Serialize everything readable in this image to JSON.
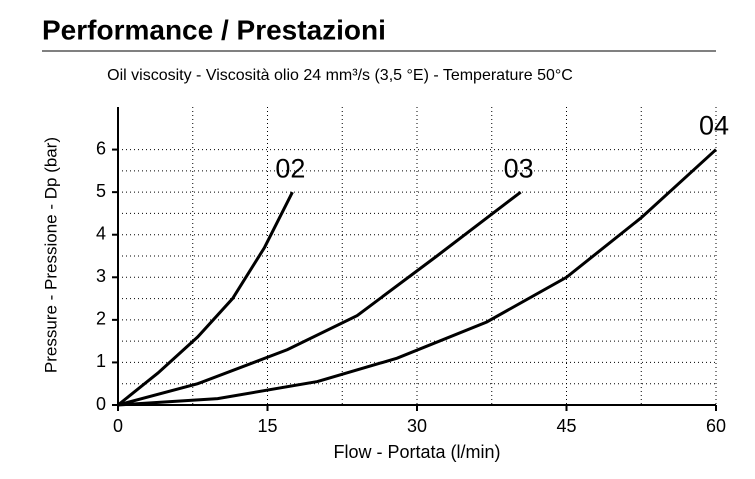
{
  "chart_data": {
    "type": "line",
    "title": "Performance / Prestazioni",
    "subtitle": "Oil viscosity - Viscosità olio 24 mm³/s (3,5 °E) - Temperature 50°C",
    "x_label": "Flow - Portata (l/min)",
    "y_label": "Pressure - Pressione - Dp (bar)",
    "xlim": [
      0,
      60
    ],
    "ylim": [
      0,
      7
    ],
    "xticks": [
      0,
      15,
      30,
      45,
      60
    ],
    "yticks": [
      0,
      1,
      2,
      3,
      4,
      5,
      6
    ],
    "grid": true,
    "series": [
      {
        "name": "02",
        "color": "#000000",
        "x": [
          0,
          4,
          8,
          11.5,
          14.7,
          17.5
        ],
        "values": [
          0,
          0.75,
          1.6,
          2.5,
          3.7,
          5
        ]
      },
      {
        "name": "03",
        "color": "#000000",
        "x": [
          0,
          8,
          17,
          24,
          32,
          40.4
        ],
        "values": [
          0,
          0.5,
          1.3,
          2.1,
          3.5,
          5
        ]
      },
      {
        "name": "04",
        "color": "#000000",
        "x": [
          0,
          10,
          20,
          28,
          37,
          45,
          52.5,
          60
        ],
        "values": [
          0,
          0.15,
          0.55,
          1.1,
          1.95,
          3,
          4.4,
          6
        ]
      }
    ]
  }
}
